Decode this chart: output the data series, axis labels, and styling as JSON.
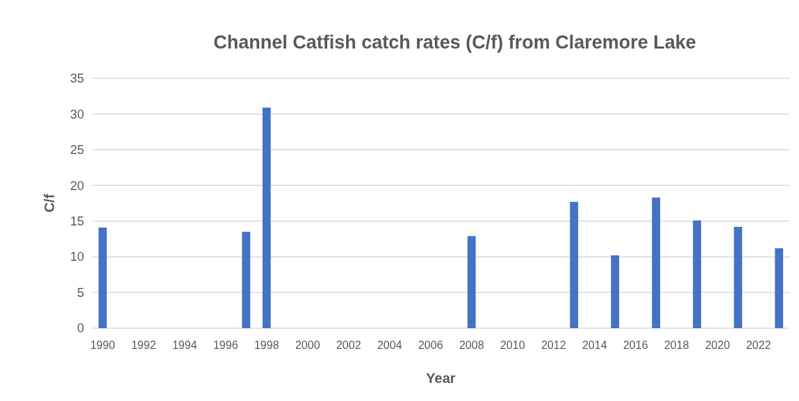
{
  "chart_data": {
    "type": "bar",
    "title": "Channel Catfish catch rates (C/f) from Claremore Lake",
    "xlabel": "Year",
    "ylabel": "C/f",
    "categories": [
      "1990",
      null,
      "1992",
      null,
      "1994",
      null,
      "1996",
      null,
      "1998",
      null,
      "2000",
      null,
      "2002",
      null,
      "2004",
      null,
      "2006",
      null,
      "2008",
      null,
      "2010",
      null,
      "2012",
      null,
      "2014",
      null,
      "2016",
      null,
      "2018",
      null,
      "2020",
      null,
      "2022",
      null
    ],
    "values": [
      14.1,
      null,
      null,
      null,
      null,
      null,
      null,
      13.5,
      30.9,
      null,
      null,
      null,
      null,
      null,
      null,
      null,
      null,
      null,
      12.9,
      null,
      null,
      null,
      null,
      17.7,
      null,
      10.2,
      null,
      18.3,
      null,
      15.1,
      null,
      14.2,
      null,
      11.2
    ],
    "color": "#4472c4",
    "ylim": [
      0,
      35
    ],
    "yticks": [
      0,
      5,
      10,
      15,
      20,
      25,
      30,
      35
    ],
    "grid": "y"
  }
}
